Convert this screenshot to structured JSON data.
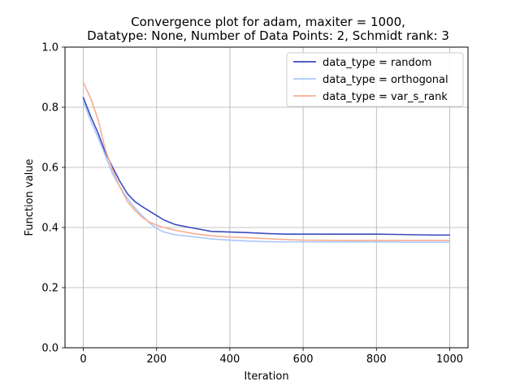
{
  "chart_data": {
    "type": "line",
    "title_line1": "Convergence plot for adam, maxiter = 1000,",
    "title_line2": "Datatype: None, Number of Data Points: 2, Schmidt rank: 3",
    "xlabel": "Iteration",
    "ylabel": "Function value",
    "xlim": [
      -50,
      1050
    ],
    "ylim": [
      0.0,
      1.0
    ],
    "xticks": [
      0,
      200,
      400,
      600,
      800,
      1000
    ],
    "yticks": [
      0.0,
      0.2,
      0.4,
      0.6,
      0.8,
      1.0
    ],
    "xtick_labels": [
      "0",
      "200",
      "400",
      "600",
      "800",
      "1000"
    ],
    "ytick_labels": [
      "0.0",
      "0.2",
      "0.4",
      "0.6",
      "0.8",
      "1.0"
    ],
    "grid": true,
    "legend_position": "top-right",
    "series": [
      {
        "name": "data_type = random",
        "color": "#3b4cc0",
        "x": [
          0,
          20,
          40,
          60,
          80,
          100,
          120,
          140,
          160,
          180,
          200,
          220,
          250,
          300,
          350,
          400,
          450,
          500,
          550,
          600,
          700,
          800,
          850,
          900,
          950,
          1000
        ],
        "y": [
          0.832,
          0.77,
          0.715,
          0.65,
          0.6,
          0.553,
          0.513,
          0.487,
          0.47,
          0.455,
          0.44,
          0.425,
          0.41,
          0.398,
          0.387,
          0.385,
          0.383,
          0.38,
          0.378,
          0.378,
          0.378,
          0.378,
          0.377,
          0.376,
          0.375,
          0.375
        ]
      },
      {
        "name": "data_type = orthogonal",
        "color": "#aac7fd",
        "x": [
          0,
          20,
          40,
          60,
          80,
          100,
          120,
          140,
          160,
          180,
          200,
          220,
          250,
          300,
          350,
          400,
          450,
          500,
          550,
          600,
          700,
          800,
          900,
          1000
        ],
        "y": [
          0.82,
          0.755,
          0.7,
          0.64,
          0.578,
          0.535,
          0.497,
          0.466,
          0.44,
          0.416,
          0.397,
          0.385,
          0.376,
          0.369,
          0.362,
          0.358,
          0.355,
          0.353,
          0.352,
          0.352,
          0.352,
          0.352,
          0.351,
          0.351
        ]
      },
      {
        "name": "data_type = var_s_rank",
        "color": "#f7ad90",
        "x": [
          0,
          20,
          40,
          60,
          80,
          100,
          120,
          140,
          160,
          180,
          200,
          220,
          250,
          300,
          350,
          400,
          450,
          500,
          550,
          600,
          700,
          800,
          900,
          1000
        ],
        "y": [
          0.883,
          0.83,
          0.76,
          0.66,
          0.59,
          0.535,
          0.487,
          0.458,
          0.435,
          0.418,
          0.408,
          0.4,
          0.391,
          0.38,
          0.372,
          0.368,
          0.366,
          0.363,
          0.36,
          0.358,
          0.357,
          0.357,
          0.357,
          0.357
        ]
      }
    ]
  }
}
